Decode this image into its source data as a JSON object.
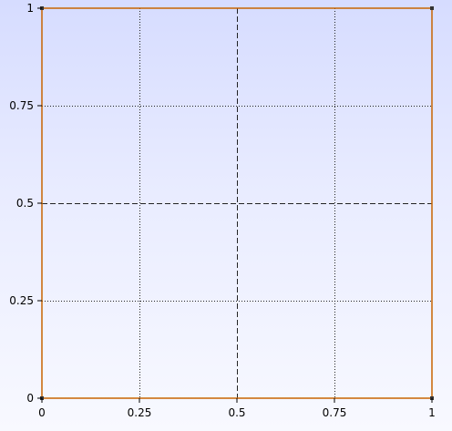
{
  "chart_data": {
    "type": "line",
    "title": "",
    "xlabel": "",
    "ylabel": "",
    "xlim": [
      0,
      1
    ],
    "ylim": [
      0,
      1
    ],
    "grid": true,
    "x_ticks": [
      {
        "value": 0,
        "label": "0"
      },
      {
        "value": 0.25,
        "label": "0.25"
      },
      {
        "value": 0.5,
        "label": "0.5"
      },
      {
        "value": 0.75,
        "label": "0.75"
      },
      {
        "value": 1,
        "label": "1"
      }
    ],
    "y_ticks": [
      {
        "value": 0,
        "label": "0"
      },
      {
        "value": 0.25,
        "label": "0.25"
      },
      {
        "value": 0.5,
        "label": "0.5"
      },
      {
        "value": 0.75,
        "label": "0.75"
      },
      {
        "value": 1,
        "label": "1"
      }
    ],
    "series": [],
    "colors": {
      "frame": "#c86400",
      "axis": "#000000",
      "grid": "#000000"
    }
  }
}
